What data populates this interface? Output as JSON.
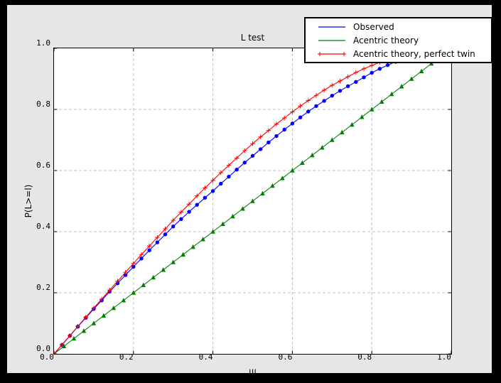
{
  "window": {
    "frame_color": "#000000",
    "figure_bg": "#e6e6e6",
    "plot_bg": "#ffffff",
    "grid_color": "#c0c0c0",
    "axis_color": "#000000"
  },
  "chart_data": {
    "type": "line",
    "title": "L test",
    "xlabel": "|l|",
    "ylabel": "P(L>=l)",
    "xlim": [
      0,
      1
    ],
    "ylim": [
      0,
      1
    ],
    "xticks": [
      "0.0",
      "0.2",
      "0.4",
      "0.6",
      "0.8",
      "1.0"
    ],
    "yticks": [
      "0.0",
      "0.2",
      "0.4",
      "0.6",
      "0.8",
      "1.0"
    ],
    "grid": true,
    "grid_style": "dashed",
    "legend_position": "upper right",
    "series": [
      {
        "name": "Observed",
        "color": "#0000ff",
        "marker": "circle",
        "x": [
          0,
          0.02,
          0.04,
          0.06,
          0.08,
          0.1,
          0.12,
          0.14,
          0.16,
          0.18,
          0.2,
          0.22,
          0.24,
          0.26,
          0.28,
          0.3,
          0.32,
          0.34,
          0.36,
          0.38,
          0.4,
          0.42,
          0.44,
          0.46,
          0.48,
          0.5,
          0.52,
          0.54,
          0.56,
          0.58,
          0.6,
          0.62,
          0.64,
          0.66,
          0.68,
          0.7,
          0.72,
          0.74,
          0.76,
          0.78,
          0.8,
          0.82,
          0.84,
          0.86
        ],
        "y": [
          0,
          0.029,
          0.059,
          0.089,
          0.118,
          0.147,
          0.175,
          0.204,
          0.231,
          0.258,
          0.285,
          0.312,
          0.339,
          0.365,
          0.391,
          0.417,
          0.441,
          0.465,
          0.488,
          0.511,
          0.533,
          0.557,
          0.58,
          0.603,
          0.626,
          0.648,
          0.67,
          0.692,
          0.713,
          0.734,
          0.754,
          0.774,
          0.793,
          0.811,
          0.828,
          0.845,
          0.861,
          0.876,
          0.89,
          0.905,
          0.92,
          0.933,
          0.945,
          0.956
        ]
      },
      {
        "name": "Acentric theory",
        "color": "#008000",
        "marker": "triangle",
        "x": [
          0,
          0.025,
          0.05,
          0.075,
          0.1,
          0.125,
          0.15,
          0.175,
          0.2,
          0.225,
          0.25,
          0.275,
          0.3,
          0.325,
          0.35,
          0.375,
          0.4,
          0.425,
          0.45,
          0.475,
          0.5,
          0.525,
          0.55,
          0.575,
          0.6,
          0.625,
          0.65,
          0.675,
          0.7,
          0.725,
          0.75,
          0.775,
          0.8,
          0.825,
          0.85,
          0.875,
          0.9,
          0.925,
          0.95
        ],
        "y": [
          0,
          0.025,
          0.05,
          0.075,
          0.1,
          0.125,
          0.15,
          0.175,
          0.2,
          0.225,
          0.25,
          0.275,
          0.3,
          0.325,
          0.35,
          0.375,
          0.4,
          0.425,
          0.45,
          0.475,
          0.5,
          0.525,
          0.55,
          0.575,
          0.6,
          0.625,
          0.65,
          0.675,
          0.7,
          0.725,
          0.75,
          0.775,
          0.8,
          0.825,
          0.85,
          0.875,
          0.9,
          0.925,
          0.95
        ]
      },
      {
        "name": "Acentric theory, perfect twin",
        "color": "#ff0000",
        "marker": "plus",
        "x": [
          0,
          0.02,
          0.04,
          0.06,
          0.08,
          0.1,
          0.12,
          0.14,
          0.16,
          0.18,
          0.2,
          0.22,
          0.24,
          0.26,
          0.28,
          0.3,
          0.32,
          0.34,
          0.36,
          0.38,
          0.4,
          0.42,
          0.44,
          0.46,
          0.48,
          0.5,
          0.52,
          0.54,
          0.56,
          0.58,
          0.6,
          0.62,
          0.64,
          0.66,
          0.68,
          0.7,
          0.72,
          0.74,
          0.76,
          0.78,
          0.8,
          0.82
        ],
        "y": [
          0,
          0.03,
          0.06,
          0.09,
          0.12,
          0.15,
          0.179,
          0.209,
          0.238,
          0.267,
          0.296,
          0.325,
          0.353,
          0.381,
          0.409,
          0.437,
          0.464,
          0.49,
          0.517,
          0.543,
          0.568,
          0.593,
          0.617,
          0.641,
          0.665,
          0.688,
          0.71,
          0.731,
          0.752,
          0.772,
          0.792,
          0.811,
          0.829,
          0.846,
          0.863,
          0.879,
          0.893,
          0.907,
          0.921,
          0.933,
          0.944,
          0.954
        ]
      }
    ]
  }
}
